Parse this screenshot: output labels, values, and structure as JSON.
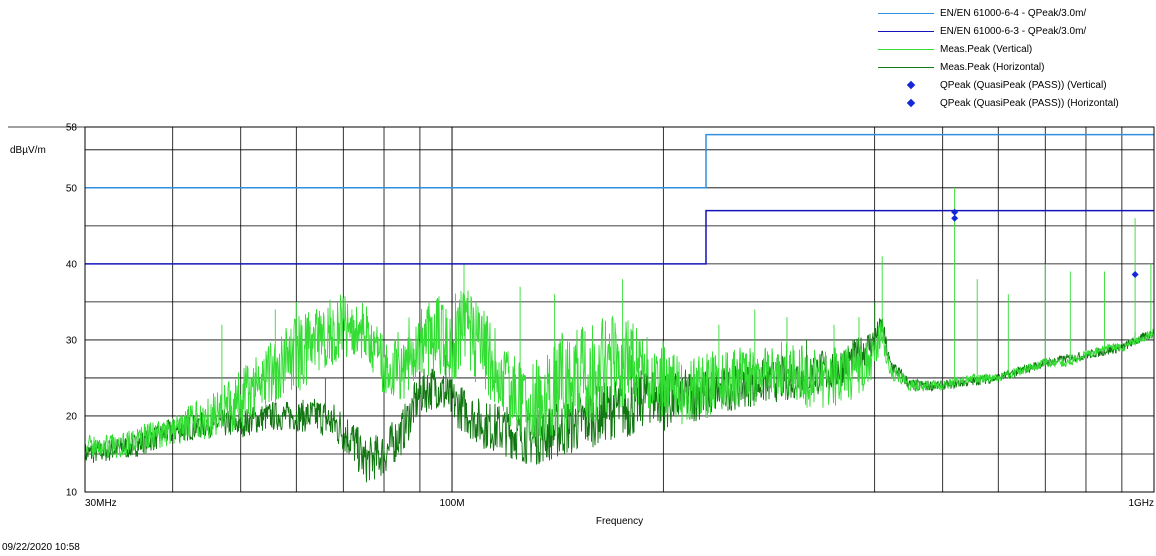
{
  "legend": [
    {
      "label": "EN/EN 61000-6-4  - QPeak/3.0m/",
      "color": "#2f8fe0",
      "marker": "line"
    },
    {
      "label": "EN/EN 61000-6-3  - QPeak/3.0m/",
      "color": "#1414b8",
      "marker": "line"
    },
    {
      "label": "Meas.Peak (Vertical)",
      "color": "#33dd33",
      "marker": "line"
    },
    {
      "label": "Meas.Peak (Horizontal)",
      "color": "#117711",
      "marker": "line"
    },
    {
      "label": "QPeak (QuasiPeak (PASS)) (Vertical)",
      "color": "#1428d8",
      "marker": "diamond"
    },
    {
      "label": "QPeak (QuasiPeak (PASS)) (Horizontal)",
      "color": "#1428d8",
      "marker": "diamond"
    }
  ],
  "footer": {
    "timestamp": "09/22/2020 10:58"
  },
  "chart_data": {
    "type": "line",
    "xlabel": "Frequency",
    "ylabel": "dBµV/m",
    "x_scale": "log",
    "xlim_mhz": [
      30,
      1000
    ],
    "ylim": [
      10,
      58
    ],
    "y_ticks": [
      10,
      20,
      30,
      40,
      50,
      58
    ],
    "x_tick_labels": [
      {
        "value_mhz": 30,
        "label": "30MHz"
      },
      {
        "value_mhz": 100,
        "label": "100M"
      },
      {
        "value_mhz": 1000,
        "label": "1GHz"
      }
    ],
    "grid": true,
    "limit_lines": [
      {
        "name": "EN/EN 61000-6-4  - QPeak/3.0m/",
        "color": "#2f8fe0",
        "points": [
          [
            30,
            50
          ],
          [
            230,
            50
          ],
          [
            230,
            57
          ],
          [
            1000,
            57
          ]
        ]
      },
      {
        "name": "EN/EN 61000-6-3  - QPeak/3.0m/",
        "color": "#1414b8",
        "points": [
          [
            30,
            40
          ],
          [
            230,
            40
          ],
          [
            230,
            47
          ],
          [
            1000,
            47
          ]
        ]
      }
    ],
    "series": [
      {
        "name": "Meas.Peak (Vertical)",
        "color": "#33dd33",
        "envelope": [
          [
            30,
            16
          ],
          [
            33,
            16
          ],
          [
            36,
            17
          ],
          [
            40,
            18
          ],
          [
            45,
            20
          ],
          [
            50,
            22
          ],
          [
            55,
            26
          ],
          [
            60,
            28
          ],
          [
            65,
            30
          ],
          [
            70,
            32
          ],
          [
            75,
            31
          ],
          [
            80,
            26
          ],
          [
            85,
            27
          ],
          [
            90,
            30
          ],
          [
            95,
            31
          ],
          [
            100,
            30
          ],
          [
            105,
            31
          ],
          [
            110,
            29
          ],
          [
            120,
            24
          ],
          [
            130,
            21
          ],
          [
            140,
            24
          ],
          [
            150,
            25
          ],
          [
            160,
            26
          ],
          [
            170,
            27
          ],
          [
            180,
            27
          ],
          [
            190,
            25
          ],
          [
            200,
            25
          ],
          [
            210,
            23
          ],
          [
            230,
            24
          ],
          [
            250,
            25
          ],
          [
            270,
            25
          ],
          [
            300,
            26
          ],
          [
            320,
            25
          ],
          [
            350,
            25
          ],
          [
            380,
            26
          ],
          [
            400,
            28
          ],
          [
            410,
            31
          ],
          [
            420,
            26
          ],
          [
            450,
            24
          ],
          [
            500,
            24
          ],
          [
            550,
            25
          ],
          [
            600,
            25
          ],
          [
            650,
            26
          ],
          [
            700,
            27
          ],
          [
            750,
            27
          ],
          [
            800,
            28
          ],
          [
            850,
            29
          ],
          [
            900,
            29
          ],
          [
            950,
            30
          ],
          [
            1000,
            31
          ]
        ],
        "amplitude": [
          [
            30,
            1.5
          ],
          [
            40,
            2
          ],
          [
            50,
            4
          ],
          [
            60,
            5
          ],
          [
            75,
            4
          ],
          [
            85,
            5
          ],
          [
            100,
            6
          ],
          [
            120,
            5
          ],
          [
            150,
            7
          ],
          [
            180,
            6
          ],
          [
            200,
            5
          ],
          [
            250,
            4
          ],
          [
            300,
            4
          ],
          [
            350,
            4
          ],
          [
            400,
            3
          ],
          [
            420,
            1
          ],
          [
            500,
            0.6
          ],
          [
            1000,
            0.6
          ]
        ],
        "spikes": [
          [
            47,
            32
          ],
          [
            56,
            34
          ],
          [
            60,
            35
          ],
          [
            72,
            34
          ],
          [
            104,
            40
          ],
          [
            125,
            37
          ],
          [
            140,
            36
          ],
          [
            175,
            38
          ],
          [
            240,
            32
          ],
          [
            270,
            34
          ],
          [
            300,
            33
          ],
          [
            350,
            32
          ],
          [
            380,
            33
          ],
          [
            410,
            41
          ],
          [
            520,
            50
          ],
          [
            560,
            38
          ],
          [
            620,
            36
          ],
          [
            700,
            40
          ],
          [
            760,
            39
          ],
          [
            850,
            39
          ],
          [
            940,
            46
          ],
          [
            990,
            40
          ]
        ]
      },
      {
        "name": "Meas.Peak (Horizontal)",
        "color": "#117711",
        "envelope": [
          [
            30,
            15
          ],
          [
            35,
            16
          ],
          [
            40,
            18
          ],
          [
            45,
            19
          ],
          [
            50,
            19
          ],
          [
            55,
            20
          ],
          [
            60,
            20
          ],
          [
            65,
            20
          ],
          [
            68,
            19
          ],
          [
            72,
            17
          ],
          [
            75,
            14
          ],
          [
            80,
            15
          ],
          [
            85,
            18
          ],
          [
            90,
            23
          ],
          [
            95,
            24
          ],
          [
            100,
            22
          ],
          [
            110,
            19
          ],
          [
            120,
            18
          ],
          [
            130,
            17
          ],
          [
            140,
            18
          ],
          [
            150,
            19
          ],
          [
            160,
            20
          ],
          [
            170,
            21
          ],
          [
            180,
            21
          ],
          [
            190,
            23
          ],
          [
            200,
            22
          ],
          [
            230,
            23
          ],
          [
            260,
            24
          ],
          [
            300,
            25
          ],
          [
            350,
            26
          ],
          [
            380,
            28
          ],
          [
            400,
            30
          ],
          [
            410,
            32
          ],
          [
            420,
            27
          ],
          [
            450,
            24
          ],
          [
            500,
            24
          ],
          [
            600,
            25
          ],
          [
            700,
            27
          ],
          [
            800,
            28
          ],
          [
            900,
            29
          ],
          [
            1000,
            31
          ]
        ],
        "amplitude": [
          [
            30,
            1.5
          ],
          [
            60,
            2
          ],
          [
            70,
            3
          ],
          [
            80,
            3
          ],
          [
            90,
            3
          ],
          [
            100,
            3
          ],
          [
            150,
            4
          ],
          [
            200,
            4
          ],
          [
            250,
            3
          ],
          [
            300,
            3
          ],
          [
            350,
            3
          ],
          [
            400,
            2
          ],
          [
            420,
            1
          ],
          [
            500,
            0.6
          ],
          [
            1000,
            0.6
          ]
        ],
        "spikes": [
          [
            66,
            25
          ],
          [
            98,
            28
          ],
          [
            180,
            28
          ],
          [
            320,
            30
          ],
          [
            400,
            35
          ],
          [
            940,
            31
          ]
        ]
      }
    ],
    "quasi_peaks": [
      {
        "series": "Vertical",
        "points": [
          [
            520,
            46.8
          ],
          [
            940,
            38.6
          ]
        ]
      },
      {
        "series": "Horizontal",
        "points": [
          [
            520,
            46
          ]
        ]
      }
    ]
  }
}
